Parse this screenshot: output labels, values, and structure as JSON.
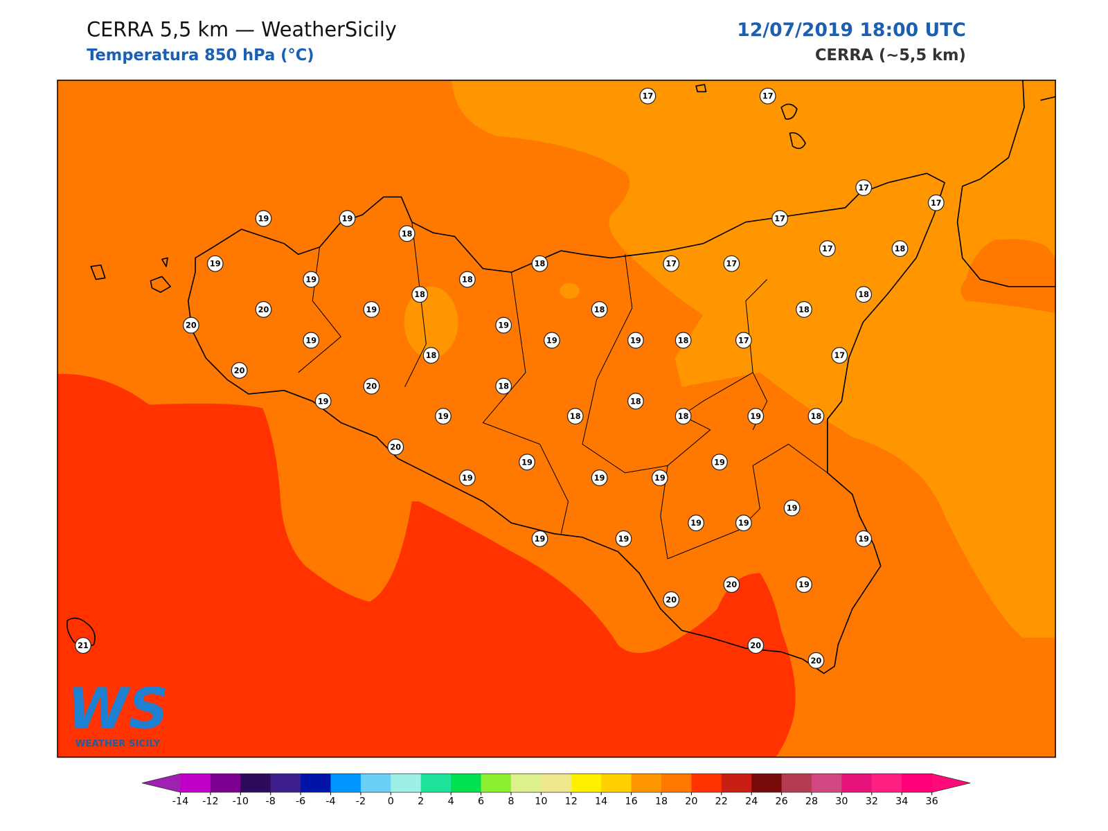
{
  "header": {
    "title": "CERRA 5,5 km — WeatherSicily",
    "subtitle": "Temperatura 850 hPa (°C)",
    "datetime": "12/07/2019 18:00 UTC",
    "model": "CERRA (~5,5 km)"
  },
  "logo": {
    "mark": "WS",
    "name": "WEATHER SICILY"
  },
  "stations": {
    "values": [
      17,
      17,
      17,
      17,
      19,
      19,
      18,
      17,
      19,
      19,
      18,
      18,
      17,
      17,
      17,
      18,
      18,
      20,
      19,
      18,
      18,
      18,
      20,
      19,
      19,
      19,
      19,
      18,
      17,
      18,
      17,
      20,
      20,
      18,
      19,
      18,
      19,
      18,
      18,
      19,
      18,
      20,
      19,
      19,
      19,
      19,
      19,
      19,
      19,
      19,
      19,
      19,
      19,
      20,
      19,
      20,
      21,
      20,
      20
    ]
  },
  "colorbar": {
    "ticks": [
      -14,
      -12,
      -10,
      -8,
      -6,
      -4,
      -2,
      0,
      2,
      4,
      6,
      8,
      10,
      12,
      14,
      16,
      18,
      20,
      22,
      24,
      26,
      28,
      30,
      32,
      34,
      36
    ],
    "colors": [
      "#c000c8",
      "#7b0090",
      "#2e0a5a",
      "#3c1e8c",
      "#0014a8",
      "#0096ff",
      "#6ccff6",
      "#9ef0e6",
      "#1ee39a",
      "#00e050",
      "#8cf030",
      "#dcf08c",
      "#f0e68c",
      "#fff000",
      "#ffd000",
      "#ff9600",
      "#ff7800",
      "#ff3200",
      "#c81e14",
      "#780a0a",
      "#b43c50",
      "#d24682",
      "#e6147a",
      "#ff1e82",
      "#ff0078"
    ],
    "extend_colors": [
      "#a020b4",
      "#ff0a78"
    ]
  }
}
